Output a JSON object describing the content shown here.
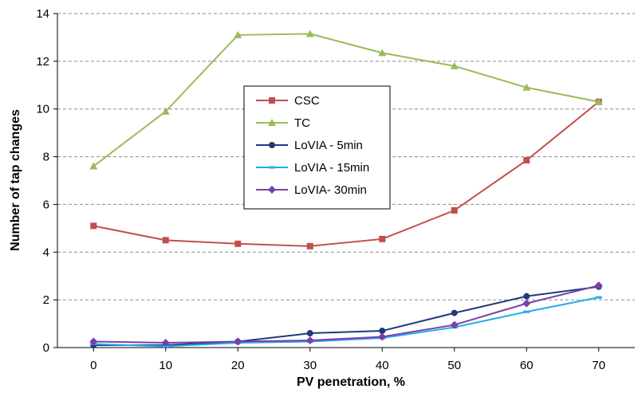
{
  "chart_data": {
    "type": "line",
    "xlabel": "PV penetration, %",
    "ylabel": "Number of tap changes",
    "x": [
      0,
      10,
      20,
      30,
      40,
      50,
      60,
      70
    ],
    "xlim": [
      -5,
      75
    ],
    "ylim": [
      0,
      14
    ],
    "yticks": [
      0,
      2,
      4,
      6,
      8,
      10,
      12,
      14
    ],
    "grid": "horizontal-dashed",
    "legend_position": "upper-center",
    "series": [
      {
        "name": "CSC",
        "color": "#c0504d",
        "marker": "square",
        "values": [
          5.1,
          4.5,
          4.35,
          4.25,
          4.55,
          5.75,
          7.85,
          10.3
        ]
      },
      {
        "name": "TC",
        "color": "#9bbb59",
        "marker": "triangle",
        "values": [
          7.6,
          9.9,
          13.1,
          13.15,
          12.35,
          11.8,
          10.9,
          10.3
        ]
      },
      {
        "name": "LoVIA - 5min",
        "color": "#1f3a7a",
        "marker": "circle",
        "values": [
          0.1,
          0.1,
          0.25,
          0.6,
          0.7,
          1.45,
          2.15,
          2.55
        ]
      },
      {
        "name": "LoVIA - 15min",
        "color": "#22aaee",
        "marker": "dash",
        "values": [
          0.15,
          0.05,
          0.2,
          0.25,
          0.4,
          0.85,
          1.5,
          2.1
        ]
      },
      {
        "name": "LoVIA- 30min",
        "color": "#7b3fa8",
        "marker": "diamond",
        "values": [
          0.25,
          0.2,
          0.25,
          0.3,
          0.45,
          0.95,
          1.85,
          2.6
        ]
      }
    ]
  }
}
